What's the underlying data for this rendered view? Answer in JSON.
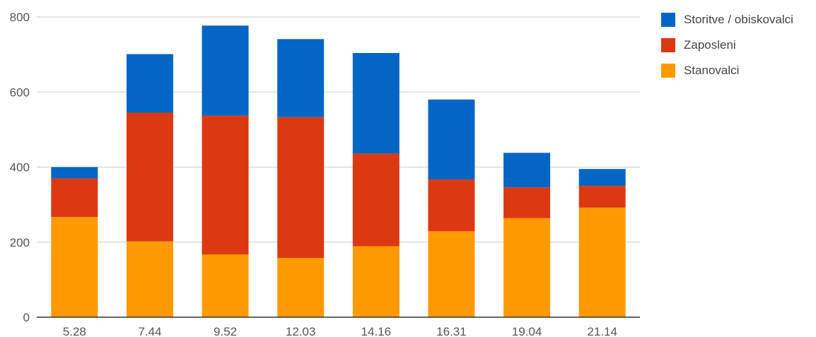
{
  "chart_data": {
    "type": "bar",
    "stacked": true,
    "categories": [
      "5.28",
      "7.44",
      "9.52",
      "12.03",
      "14.16",
      "16.31",
      "19.04",
      "21.14"
    ],
    "series": [
      {
        "name": "Stanovalci",
        "color": "#FF9900",
        "values": [
          267,
          202,
          167,
          158,
          189,
          229,
          264,
          292
        ]
      },
      {
        "name": "Zaposleni",
        "color": "#DC3912",
        "values": [
          103,
          343,
          370,
          375,
          247,
          138,
          82,
          58
        ]
      },
      {
        "name": "Storitve / obiskovalci",
        "color": "#0366C4",
        "values": [
          30,
          156,
          240,
          208,
          268,
          213,
          92,
          45
        ]
      }
    ],
    "yticks": [
      "0",
      "200",
      "400",
      "600",
      "800"
    ],
    "ylim": [
      0,
      800
    ],
    "grid": true,
    "legend_position": "right",
    "legend_order": [
      "Storitve / obiskovalci",
      "Zaposleni",
      "Stanovalci"
    ]
  }
}
